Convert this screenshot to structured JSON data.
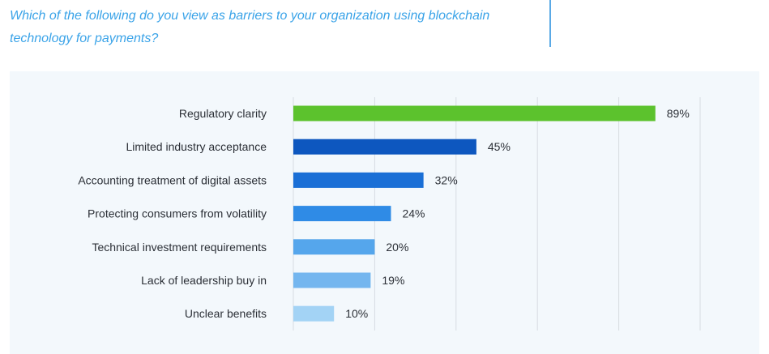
{
  "header": {
    "question": "Which of the following do you view as barriers to your organization using blockchain technology for payments?"
  },
  "colors": {
    "question_text": "#3aa3e8",
    "panel_bg": "#f3f8fc",
    "gridline": "#d7dce2"
  },
  "chart_data": {
    "type": "bar",
    "orientation": "horizontal",
    "categories": [
      "Regulatory clarity",
      "Limited industry acceptance",
      "Accounting treatment of digital assets",
      "Protecting consumers from volatility",
      "Technical investment requirements",
      "Lack of leadership buy in",
      "Unclear benefits"
    ],
    "values": [
      89,
      45,
      32,
      24,
      20,
      19,
      10
    ],
    "value_labels": [
      "89%",
      "45%",
      "32%",
      "24%",
      "20%",
      "19%",
      "10%"
    ],
    "bar_colors": [
      "#5cc22d",
      "#0d57bf",
      "#1a6fd6",
      "#2f8be6",
      "#55a6ec",
      "#74b6ef",
      "#a3d3f5"
    ],
    "xlim": [
      0,
      100
    ],
    "grid": true,
    "grid_ticks": [
      0,
      20,
      40,
      60,
      80,
      100
    ]
  }
}
